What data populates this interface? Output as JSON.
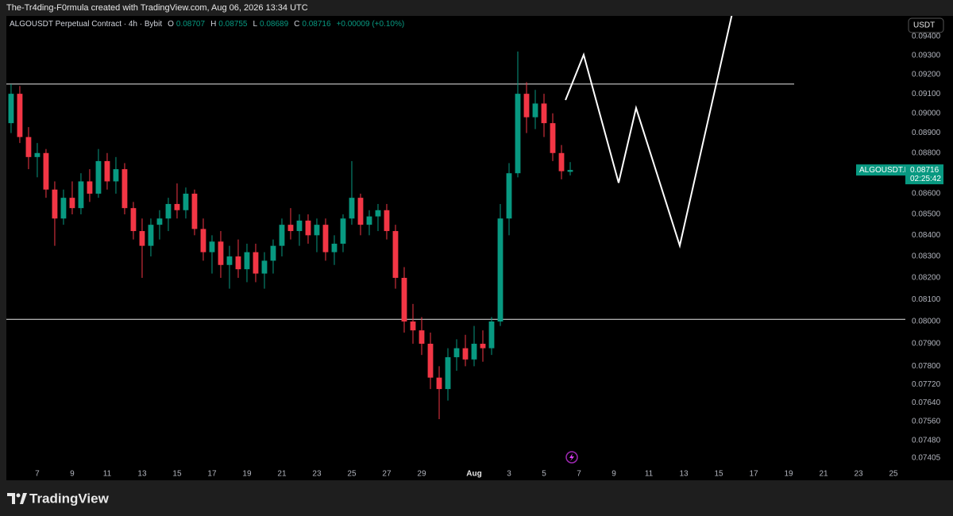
{
  "header": "The-Tr4ding-F0rmula created with TradingView.com, Aug 06, 2026 13:34 UTC",
  "footer": "TradingView",
  "chart_data": {
    "type": "candlestick",
    "title": "ALGOUSDT Perpetual Contract · 4h · Bybit",
    "ohlc_labels": [
      "O",
      "H",
      "L",
      "C"
    ],
    "change_label": "+0.00009 (+0.10%)",
    "currency": "USDT",
    "symbol_tag": "ALGOUSDT.P",
    "countdown": "02:25:42",
    "log": true,
    "up_color": "#089981",
    "down_color": "#f23645",
    "x": [
      5.5,
      6,
      6.5,
      7,
      7.5,
      8,
      8.5,
      9,
      9.5,
      10,
      10.5,
      11,
      11.5,
      12,
      12.5,
      13,
      13.5,
      14,
      14.5,
      15,
      15.5,
      16,
      16.5,
      17,
      17.5,
      18,
      18.5,
      19,
      19.5,
      20,
      20.5,
      21,
      21.5,
      22,
      22.5,
      23,
      23.5,
      24,
      24.5,
      25,
      25.5,
      26,
      26.5,
      27,
      27.5,
      28,
      28.5,
      29,
      29.5,
      30,
      30.5,
      31,
      31.5,
      32,
      32.5,
      33,
      33.5,
      34,
      34.5,
      35,
      35.5,
      36,
      36.5,
      37,
      37.5
    ],
    "open": [
      0.0895,
      0.091,
      0.0888,
      0.0878,
      0.088,
      0.0862,
      0.0848,
      0.0858,
      0.0853,
      0.0866,
      0.086,
      0.0876,
      0.0866,
      0.0872,
      0.0853,
      0.0842,
      0.0835,
      0.0845,
      0.0848,
      0.0855,
      0.0852,
      0.086,
      0.0843,
      0.0832,
      0.0837,
      0.0826,
      0.083,
      0.0824,
      0.0832,
      0.0822,
      0.0828,
      0.0835,
      0.0845,
      0.0842,
      0.0847,
      0.084,
      0.0845,
      0.0832,
      0.0836,
      0.0848,
      0.0858,
      0.0845,
      0.0849,
      0.0852,
      0.0842,
      0.082,
      0.08,
      0.0796,
      0.079,
      0.0775,
      0.077,
      0.0784,
      0.0788,
      0.0783,
      0.079,
      0.0788,
      0.08,
      0.0848,
      0.087,
      0.091,
      0.0898,
      0.0905,
      0.0895,
      0.088,
      0.08707
    ],
    "high": [
      0.0915,
      0.0914,
      0.0893,
      0.0885,
      0.0882,
      0.0866,
      0.0862,
      0.0866,
      0.087,
      0.0872,
      0.0882,
      0.088,
      0.0878,
      0.0875,
      0.0856,
      0.0848,
      0.0848,
      0.0852,
      0.0858,
      0.0865,
      0.0863,
      0.0862,
      0.0848,
      0.084,
      0.0842,
      0.0835,
      0.0838,
      0.0836,
      0.0836,
      0.0832,
      0.0838,
      0.0848,
      0.0853,
      0.085,
      0.085,
      0.0848,
      0.0848,
      0.084,
      0.085,
      0.0876,
      0.086,
      0.0852,
      0.0855,
      0.0855,
      0.0845,
      0.0825,
      0.0808,
      0.0802,
      0.0795,
      0.078,
      0.0788,
      0.0792,
      0.0794,
      0.0798,
      0.0796,
      0.0802,
      0.0855,
      0.0875,
      0.0932,
      0.0916,
      0.0912,
      0.091,
      0.09,
      0.0884,
      0.08755
    ],
    "low": [
      0.089,
      0.0885,
      0.0872,
      0.0868,
      0.0858,
      0.0835,
      0.0845,
      0.085,
      0.085,
      0.0856,
      0.0858,
      0.0862,
      0.086,
      0.085,
      0.0838,
      0.082,
      0.083,
      0.0838,
      0.0842,
      0.0848,
      0.0848,
      0.084,
      0.0828,
      0.0822,
      0.082,
      0.0815,
      0.082,
      0.0818,
      0.0818,
      0.0815,
      0.0822,
      0.083,
      0.0838,
      0.0835,
      0.0836,
      0.0832,
      0.0828,
      0.0826,
      0.0832,
      0.0845,
      0.084,
      0.084,
      0.0842,
      0.0838,
      0.0815,
      0.0795,
      0.079,
      0.0785,
      0.077,
      0.0757,
      0.0765,
      0.0778,
      0.078,
      0.078,
      0.0782,
      0.0785,
      0.0798,
      0.084,
      0.0868,
      0.089,
      0.0892,
      0.0888,
      0.0876,
      0.0867,
      0.08689
    ],
    "close": [
      0.091,
      0.0888,
      0.0878,
      0.088,
      0.0862,
      0.0848,
      0.0858,
      0.0853,
      0.0866,
      0.086,
      0.0876,
      0.0866,
      0.0872,
      0.0853,
      0.0842,
      0.0835,
      0.0845,
      0.0848,
      0.0855,
      0.0852,
      0.086,
      0.0843,
      0.0832,
      0.0837,
      0.0826,
      0.083,
      0.0824,
      0.0832,
      0.0822,
      0.0828,
      0.0835,
      0.0845,
      0.0842,
      0.0847,
      0.084,
      0.0845,
      0.0832,
      0.0836,
      0.0848,
      0.0858,
      0.0845,
      0.0849,
      0.0852,
      0.0842,
      0.082,
      0.08,
      0.0796,
      0.079,
      0.0775,
      0.077,
      0.0784,
      0.0788,
      0.0783,
      0.079,
      0.0788,
      0.08,
      0.0848,
      0.087,
      0.091,
      0.0898,
      0.0905,
      0.0895,
      0.088,
      0.0871,
      0.08716
    ],
    "levels": [
      0.0915,
      0.0801
    ],
    "projection": {
      "x": [
        37.23,
        38.27,
        40.27,
        41.27,
        43.77,
        46.77
      ],
      "y": [
        0.09068,
        0.09303,
        0.08653,
        0.09027,
        0.08351,
        0.09523
      ]
    },
    "xlim": [
      5.23,
      56.68
    ],
    "xticks": [
      7,
      9,
      11,
      13,
      15,
      17,
      19,
      21,
      23,
      25,
      27,
      29,
      {
        "value": 32,
        "label": "Aug"
      },
      {
        "value": 34,
        "label": "3"
      },
      {
        "value": 36,
        "label": "5"
      },
      {
        "value": 38,
        "label": "7"
      },
      {
        "value": 40,
        "label": "9"
      },
      {
        "value": 42,
        "label": "11"
      },
      {
        "value": 44,
        "label": "13"
      },
      {
        "value": 46,
        "label": "15"
      },
      {
        "value": 48,
        "label": "17"
      },
      {
        "value": 50,
        "label": "19"
      },
      {
        "value": 52,
        "label": "21"
      },
      {
        "value": 54,
        "label": "23"
      },
      {
        "value": 56,
        "label": "25"
      }
    ],
    "ylim": [
      0.07316,
      0.0951
    ],
    "yticks": [
      {
        "value": 0.094,
        "label": "0.09400"
      },
      {
        "value": 0.093,
        "label": "0.09300"
      },
      {
        "value": 0.092,
        "label": "0.09200"
      },
      {
        "value": 0.091,
        "label": "0.09100"
      },
      {
        "value": 0.09,
        "label": "0.09000"
      },
      {
        "value": 0.089,
        "label": "0.08900"
      },
      {
        "value": 0.088,
        "label": "0.08800"
      },
      {
        "value": 0.086,
        "label": "0.08600"
      },
      {
        "value": 0.085,
        "label": "0.08500"
      },
      {
        "value": 0.084,
        "label": "0.08400"
      },
      {
        "value": 0.083,
        "label": "0.08300"
      },
      {
        "value": 0.082,
        "label": "0.08200"
      },
      {
        "value": 0.081,
        "label": "0.08100"
      },
      {
        "value": 0.08,
        "label": "0.08000"
      },
      {
        "value": 0.079,
        "label": "0.07900"
      },
      {
        "value": 0.078,
        "label": "0.07800"
      },
      {
        "value": 0.0772,
        "label": "0.07720"
      },
      {
        "value": 0.0764,
        "label": "0.07640"
      },
      {
        "value": 0.0756,
        "label": "0.07560"
      },
      {
        "value": 0.0748,
        "label": "0.07480"
      },
      {
        "value": 0.07405,
        "label": "0.07405"
      }
    ]
  }
}
